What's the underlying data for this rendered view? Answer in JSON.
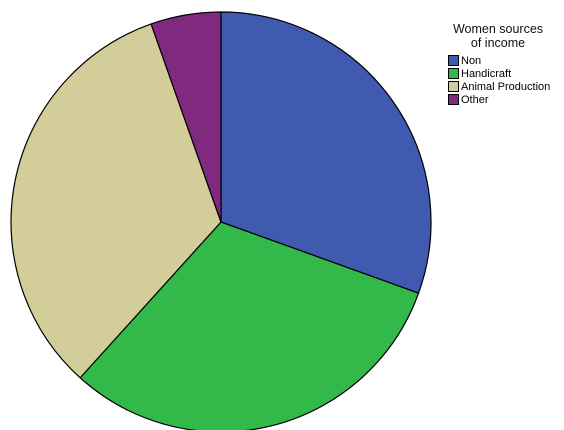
{
  "chart_data": {
    "type": "pie",
    "legend_title": "Women sources of income",
    "legend_title_lines": [
      "Women sources",
      "of income"
    ],
    "legend_position": "top-right",
    "start_angle_deg": 0,
    "direction": "clockwise",
    "slices": [
      {
        "label": "Non",
        "value": 30.5,
        "color": "#3f5aae"
      },
      {
        "label": "Handicraft",
        "value": 31.2,
        "color": "#33b94a"
      },
      {
        "label": "Animal Production",
        "value": 32.9,
        "color": "#d3cd99"
      },
      {
        "label": "Other",
        "value": 5.4,
        "color": "#7f2a7e"
      }
    ]
  }
}
